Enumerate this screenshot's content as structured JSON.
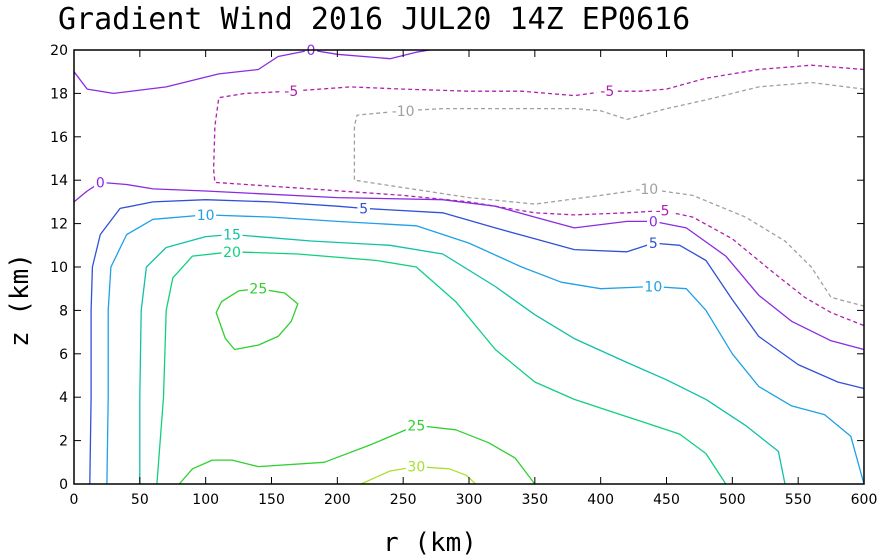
{
  "chart_data": {
    "type": "contour",
    "title": "Gradient Wind 2016 JUL20 14Z  EP0616",
    "xlabel": "r (km)",
    "ylabel": "z (km)",
    "xlim": [
      0,
      600
    ],
    "ylim": [
      0,
      20
    ],
    "x_ticks": [
      "0",
      "50",
      "100",
      "150",
      "200",
      "250",
      "300",
      "350",
      "400",
      "450",
      "500",
      "550",
      "600"
    ],
    "y_ticks": [
      "0",
      "2",
      "4",
      "6",
      "8",
      "10",
      "12",
      "14",
      "16",
      "18",
      "20"
    ],
    "contours": [
      {
        "level": -10,
        "label": "-10",
        "color": "#a0a0a0",
        "dashed": true,
        "label_at": [
          [
            250,
            17.2
          ],
          [
            435,
            13.6
          ]
        ],
        "lines": [
          [
            [
              600,
              18.2
            ],
            [
              560,
              18.5
            ],
            [
              520,
              18.3
            ],
            [
              480,
              17.7
            ],
            [
              450,
              17.3
            ],
            [
              420,
              16.8
            ],
            [
              400,
              17.2
            ],
            [
              380,
              17.3
            ],
            [
              320,
              17.3
            ],
            [
              280,
              17.3
            ],
            [
              250,
              17.2
            ],
            [
              215,
              17.0
            ],
            [
              213,
              16.5
            ],
            [
              213,
              14.0
            ],
            [
              300,
              13.2
            ],
            [
              350,
              12.9
            ],
            [
              400,
              13.3
            ],
            [
              435,
              13.6
            ],
            [
              470,
              13.3
            ],
            [
              510,
              12.3
            ],
            [
              540,
              11.2
            ],
            [
              560,
              10.0
            ],
            [
              575,
              8.6
            ],
            [
              600,
              8.2
            ]
          ]
        ]
      },
      {
        "level": -5,
        "label": "-5",
        "color": "#b020b0",
        "dashed": true,
        "label_at": [
          [
            165,
            18.1
          ],
          [
            405,
            18.1
          ],
          [
            447,
            12.6
          ]
        ],
        "lines": [
          [
            [
              600,
              19.1
            ],
            [
              560,
              19.3
            ],
            [
              520,
              19.1
            ],
            [
              480,
              18.7
            ],
            [
              450,
              18.2
            ],
            [
              430,
              18.1
            ],
            [
              405,
              18.1
            ],
            [
              380,
              17.9
            ],
            [
              340,
              18.1
            ],
            [
              300,
              18.1
            ],
            [
              250,
              18.2
            ],
            [
              210,
              18.3
            ],
            [
              165,
              18.1
            ],
            [
              130,
              18.0
            ],
            [
              110,
              17.8
            ],
            [
              107,
              16.5
            ],
            [
              106,
              14.5
            ],
            [
              107,
              13.9
            ],
            [
              180,
              13.6
            ],
            [
              250,
              13.3
            ],
            [
              300,
              13.0
            ],
            [
              350,
              12.5
            ],
            [
              380,
              12.4
            ],
            [
              420,
              12.5
            ],
            [
              447,
              12.6
            ],
            [
              470,
              12.3
            ],
            [
              500,
              11.3
            ],
            [
              530,
              9.8
            ],
            [
              555,
              8.6
            ],
            [
              575,
              7.9
            ],
            [
              600,
              7.3
            ]
          ]
        ]
      },
      {
        "level": 0,
        "label": "0",
        "color": "#8a2be2",
        "dashed": false,
        "label_at": [
          [
            180,
            20.0
          ],
          [
            20,
            13.9
          ],
          [
            440,
            12.1
          ]
        ],
        "lines": [
          [
            [
              0,
              19.0
            ],
            [
              10,
              18.2
            ],
            [
              30,
              18.0
            ],
            [
              70,
              18.3
            ],
            [
              110,
              18.9
            ],
            [
              140,
              19.1
            ],
            [
              155,
              19.7
            ],
            [
              180,
              20.0
            ]
          ],
          [
            [
              180,
              20.0
            ],
            [
              200,
              19.8
            ],
            [
              240,
              19.6
            ],
            [
              260,
              19.9
            ],
            [
              270,
              20.0
            ]
          ],
          [
            [
              0,
              13.0
            ],
            [
              10,
              13.5
            ],
            [
              20,
              13.9
            ],
            [
              40,
              13.8
            ],
            [
              60,
              13.6
            ],
            [
              100,
              13.5
            ],
            [
              200,
              13.2
            ],
            [
              280,
              13.1
            ],
            [
              320,
              12.8
            ],
            [
              350,
              12.3
            ],
            [
              380,
              11.8
            ],
            [
              420,
              12.1
            ],
            [
              440,
              12.1
            ],
            [
              465,
              11.8
            ],
            [
              495,
              10.5
            ],
            [
              520,
              8.7
            ],
            [
              545,
              7.5
            ],
            [
              575,
              6.6
            ],
            [
              600,
              6.2
            ]
          ]
        ]
      },
      {
        "level": 5,
        "label": "5",
        "color": "#3050d8",
        "dashed": false,
        "label_at": [
          [
            220,
            12.7
          ],
          [
            440,
            11.1
          ]
        ],
        "lines": [
          [
            [
              12,
              0
            ],
            [
              13,
              4
            ],
            [
              13,
              8
            ],
            [
              14,
              10
            ],
            [
              20,
              11.5
            ],
            [
              35,
              12.7
            ],
            [
              60,
              13.0
            ],
            [
              100,
              13.1
            ],
            [
              150,
              13.0
            ],
            [
              200,
              12.8
            ],
            [
              220,
              12.7
            ],
            [
              280,
              12.5
            ],
            [
              320,
              11.8
            ],
            [
              350,
              11.3
            ],
            [
              380,
              10.8
            ],
            [
              420,
              10.7
            ],
            [
              440,
              11.1
            ],
            [
              460,
              11.0
            ],
            [
              480,
              10.3
            ],
            [
              500,
              8.5
            ],
            [
              520,
              6.8
            ],
            [
              550,
              5.5
            ],
            [
              580,
              4.7
            ],
            [
              600,
              4.4
            ]
          ]
        ]
      },
      {
        "level": 10,
        "label": "10",
        "color": "#1fa0e8",
        "dashed": false,
        "label_at": [
          [
            100,
            12.4
          ],
          [
            440,
            9.1
          ]
        ],
        "lines": [
          [
            [
              25,
              0
            ],
            [
              26,
              4
            ],
            [
              26,
              8
            ],
            [
              28,
              10
            ],
            [
              40,
              11.5
            ],
            [
              60,
              12.2
            ],
            [
              100,
              12.4
            ],
            [
              150,
              12.3
            ],
            [
              200,
              12.1
            ],
            [
              260,
              11.9
            ],
            [
              300,
              11.1
            ],
            [
              340,
              10.0
            ],
            [
              370,
              9.3
            ],
            [
              400,
              9.0
            ],
            [
              440,
              9.1
            ],
            [
              465,
              9.0
            ],
            [
              480,
              8.0
            ],
            [
              500,
              6.0
            ],
            [
              520,
              4.5
            ],
            [
              545,
              3.6
            ],
            [
              570,
              3.2
            ],
            [
              590,
              2.2
            ],
            [
              600,
              0
            ]
          ]
        ]
      },
      {
        "level": 15,
        "label": "15",
        "color": "#10c0a8",
        "dashed": false,
        "label_at": [
          [
            120,
            11.5
          ]
        ],
        "lines": [
          [
            [
              50,
              0
            ],
            [
              50,
              4
            ],
            [
              51,
              8
            ],
            [
              55,
              10
            ],
            [
              70,
              10.9
            ],
            [
              100,
              11.4
            ],
            [
              120,
              11.5
            ],
            [
              180,
              11.2
            ],
            [
              240,
              11.0
            ],
            [
              280,
              10.6
            ],
            [
              320,
              9.1
            ],
            [
              350,
              7.8
            ],
            [
              380,
              6.7
            ],
            [
              420,
              5.6
            ],
            [
              450,
              4.8
            ],
            [
              480,
              3.9
            ],
            [
              510,
              2.7
            ],
            [
              535,
              1.5
            ],
            [
              540,
              0
            ]
          ]
        ]
      },
      {
        "level": 20,
        "label": "20",
        "color": "#10d080",
        "dashed": false,
        "label_at": [
          [
            120,
            10.7
          ]
        ],
        "lines": [
          [
            [
              63,
              0
            ],
            [
              68,
              4
            ],
            [
              70,
              8
            ],
            [
              75,
              9.5
            ],
            [
              90,
              10.5
            ],
            [
              120,
              10.7
            ],
            [
              170,
              10.6
            ],
            [
              230,
              10.3
            ],
            [
              260,
              10.0
            ],
            [
              290,
              8.4
            ],
            [
              320,
              6.2
            ],
            [
              350,
              4.7
            ],
            [
              380,
              3.9
            ],
            [
              420,
              3.1
            ],
            [
              460,
              2.3
            ],
            [
              480,
              1.4
            ],
            [
              495,
              0
            ]
          ]
        ]
      },
      {
        "level": 25,
        "label": "25",
        "color": "#30d030",
        "dashed": false,
        "label_at": [
          [
            140,
            9.0
          ],
          [
            260,
            2.7
          ]
        ],
        "lines": [
          [
            [
              140,
              9.0
            ],
            [
              160,
              8.8
            ],
            [
              170,
              8.3
            ],
            [
              165,
              7.5
            ],
            [
              155,
              6.8
            ],
            [
              140,
              6.4
            ],
            [
              122,
              6.2
            ],
            [
              115,
              6.7
            ],
            [
              108,
              7.9
            ],
            [
              112,
              8.4
            ],
            [
              125,
              8.9
            ],
            [
              140,
              9.0
            ]
          ],
          [
            [
              80,
              0
            ],
            [
              90,
              0.7
            ],
            [
              105,
              1.1
            ],
            [
              120,
              1.1
            ],
            [
              140,
              0.8
            ],
            [
              190,
              1.0
            ],
            [
              225,
              1.8
            ],
            [
              260,
              2.7
            ],
            [
              290,
              2.5
            ],
            [
              315,
              1.9
            ],
            [
              335,
              1.2
            ],
            [
              350,
              0
            ]
          ]
        ]
      },
      {
        "level": 30,
        "label": "30",
        "color": "#a8e030",
        "dashed": false,
        "label_at": [
          [
            260,
            0.8
          ]
        ],
        "lines": [
          [
            [
              218,
              0
            ],
            [
              240,
              0.6
            ],
            [
              260,
              0.8
            ],
            [
              285,
              0.7
            ],
            [
              298,
              0.4
            ],
            [
              305,
              0
            ]
          ]
        ]
      }
    ]
  }
}
